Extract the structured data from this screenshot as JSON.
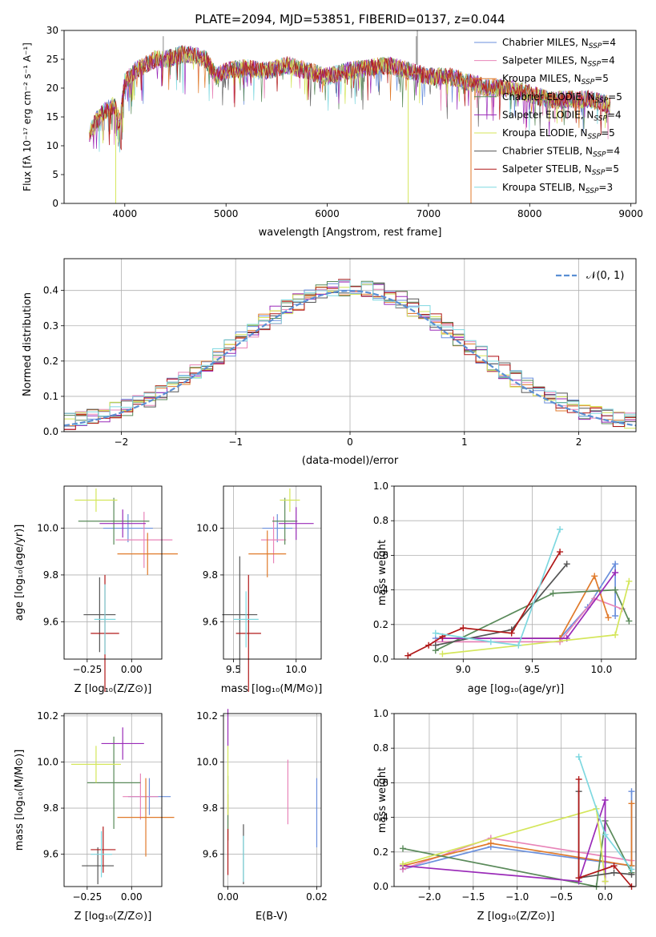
{
  "colors": [
    "#6a8fdc",
    "#e884b8",
    "#e07a2a",
    "#5a8a5a",
    "#9a2ab8",
    "#d4e65a",
    "#555555",
    "#b01818",
    "#7ed8e0"
  ],
  "spectrum_panel": {
    "title": "PLATE=2094, MJD=53851, FIBERID=0137, z=0.044",
    "xlabel": "wavelength [Angstrom, rest frame]",
    "ylabel": "Flux [fλ 10⁻¹⁷ erg cm⁻² s⁻¹ A⁻¹]",
    "x_ticks": [
      "4000",
      "5000",
      "6000",
      "7000",
      "8000",
      "9000"
    ],
    "y_ticks": [
      "0",
      "5",
      "10",
      "15",
      "20",
      "25",
      "30"
    ],
    "legend": [
      "Chabrier MILES, N_SSP=4",
      "Salpeter MILES, N_SSP=4",
      "Kroupa MILES, N_SSP=5",
      "Chabrier ELODIE, N_SSP=5",
      "Salpeter ELODIE, N_SSP=4",
      "Kroupa ELODIE, N_SSP=5",
      "Chabrier STELIB, N_SSP=4",
      "Salpeter STELIB, N_SSP=5",
      "Kroupa STELIB, N_SSP=3"
    ]
  },
  "residual_panel": {
    "xlabel": "(data-model)/error",
    "ylabel": "Normed distribution",
    "legend": "𝒩(0, 1)",
    "x_ticks": [
      "−2",
      "−1",
      "0",
      "1",
      "2"
    ],
    "y_ticks": [
      "0.0",
      "0.1",
      "0.2",
      "0.3",
      "0.4"
    ]
  },
  "z_age_panel": {
    "xlabel": "Z [log₁₀(Z/Z⊙)]",
    "ylabel": "age [log₁₀(age/yr)]",
    "x_ticks": [
      "−0.25",
      "0.00"
    ],
    "y_ticks": [
      "9.6",
      "9.8",
      "10.0"
    ]
  },
  "mass_age_panel": {
    "xlabel": "mass [log₁₀(M/M⊙)]",
    "x_ticks": [
      "9.5",
      "10.0"
    ],
    "y_ticks": [
      "9.6",
      "9.8",
      "10.0"
    ]
  },
  "age_weight_panel": {
    "xlabel": "age [log₁₀(age/yr)]",
    "ylabel": "mass weight",
    "x_ticks": [
      "9.0",
      "9.5",
      "10.0"
    ],
    "y_ticks": [
      "0.0",
      "0.2",
      "0.4",
      "0.6",
      "0.8",
      "1.0"
    ]
  },
  "z_mass_panel": {
    "xlabel": "Z [log₁₀(Z/Z⊙)]",
    "ylabel": "mass [log₁₀(M/M⊙)]",
    "x_ticks": [
      "−0.25",
      "0.00"
    ],
    "y_ticks": [
      "9.6",
      "9.8",
      "10.0",
      "10.2"
    ]
  },
  "ebv_mass_panel": {
    "xlabel": "E(B-V)",
    "x_ticks": [
      "0.00",
      "0.02"
    ],
    "y_ticks": [
      "9.6",
      "9.8",
      "10.0",
      "10.2"
    ]
  },
  "z_weight_panel": {
    "xlabel": "Z [log₁₀(Z/Z⊙)]",
    "ylabel": "mass weight",
    "x_ticks": [
      "−2.0",
      "−1.5",
      "−1.0",
      "−0.5",
      "0.0"
    ],
    "y_ticks": [
      "0.0",
      "0.2",
      "0.4",
      "0.6",
      "0.8",
      "1.0"
    ]
  },
  "chart_data": [
    {
      "type": "line",
      "title": "PLATE=2094, MJD=53851, FIBERID=0137, z=0.044",
      "xlabel": "wavelength [Angstrom, rest frame]",
      "xlim": [
        3400,
        9050
      ],
      "ylim": [
        0,
        30
      ],
      "series_shape": {
        "x": [
          3650,
          3700,
          3800,
          3900,
          3950,
          4000,
          4100,
          4200,
          4300,
          4400,
          4600,
          4800,
          4900,
          5000,
          5200,
          5400,
          5600,
          5800,
          6000,
          6200,
          6400,
          6600,
          6800,
          7000,
          7200,
          7400,
          7600,
          7800,
          8000,
          8200,
          8400,
          8600,
          8800
        ],
        "y": [
          12,
          14,
          16,
          17,
          14,
          21,
          23,
          24,
          25,
          25,
          26,
          25,
          22,
          23,
          23.5,
          23,
          24,
          23,
          22,
          23,
          23.5,
          24,
          23,
          22,
          22,
          21,
          20,
          20,
          19,
          18,
          18,
          18,
          17
        ]
      },
      "dropouts": [
        {
          "series": "Kroupa ELODIE",
          "x": 3910
        },
        {
          "series": "Kroupa ELODIE",
          "x": 6800
        },
        {
          "series": "Kroupa MILES",
          "x": 7420
        }
      ]
    },
    {
      "type": "line",
      "xlabel": "(data-model)/error",
      "ylabel": "Normed distribution",
      "xlim": [
        -2.5,
        2.5
      ],
      "ylim": [
        0,
        0.49
      ],
      "reference": "standard normal N(0,1)"
    },
    {
      "type": "scatter",
      "xlabel": "Z [log₁₀(Z/Z⊙)]",
      "ylabel": "age [log₁₀(age/yr)]",
      "xlim": [
        -0.38,
        0.17
      ],
      "ylim": [
        9.44,
        10.18
      ],
      "points": [
        {
          "x": -0.02,
          "y": 10.0,
          "xerr": 0.14,
          "yerr": 0.06,
          "c": 0
        },
        {
          "x": 0.07,
          "y": 9.95,
          "xerr": 0.16,
          "yerr": 0.12,
          "c": 1
        },
        {
          "x": 0.09,
          "y": 9.89,
          "xerr": 0.17,
          "yerr": 0.09,
          "c": 2
        },
        {
          "x": -0.1,
          "y": 10.03,
          "xerr": 0.2,
          "yerr": 0.1,
          "c": 3
        },
        {
          "x": -0.05,
          "y": 10.02,
          "xerr": 0.13,
          "yerr": 0.06,
          "c": 4
        },
        {
          "x": -0.2,
          "y": 10.12,
          "xerr": 0.12,
          "yerr": 0.05,
          "c": 5
        },
        {
          "x": -0.18,
          "y": 9.63,
          "xerr": 0.09,
          "yerr": 0.16,
          "c": 6
        },
        {
          "x": -0.15,
          "y": 9.55,
          "xerr": 0.08,
          "yerr": 0.25,
          "c": 7
        },
        {
          "x": -0.15,
          "y": 9.61,
          "xerr": 0.06,
          "yerr": 0.15,
          "c": 8
        }
      ]
    },
    {
      "type": "scatter",
      "xlabel": "mass [log₁₀(M/M⊙)]",
      "xlim": [
        9.42,
        10.2
      ],
      "ylim": [
        9.44,
        10.18
      ],
      "points": [
        {
          "x": 9.85,
          "y": 10.0,
          "xerr": 0.12,
          "yerr": 0.06,
          "c": 0
        },
        {
          "x": 9.82,
          "y": 9.95,
          "xerr": 0.1,
          "yerr": 0.1,
          "c": 1
        },
        {
          "x": 9.77,
          "y": 9.89,
          "xerr": 0.15,
          "yerr": 0.1,
          "c": 2
        },
        {
          "x": 9.91,
          "y": 10.03,
          "xerr": 0.1,
          "yerr": 0.1,
          "c": 3
        },
        {
          "x": 10.0,
          "y": 10.02,
          "xerr": 0.14,
          "yerr": 0.07,
          "c": 4
        },
        {
          "x": 9.95,
          "y": 10.12,
          "xerr": 0.08,
          "yerr": 0.05,
          "c": 5
        },
        {
          "x": 9.55,
          "y": 9.63,
          "xerr": 0.14,
          "yerr": 0.25,
          "c": 6
        },
        {
          "x": 9.62,
          "y": 9.55,
          "xerr": 0.1,
          "yerr": 0.25,
          "c": 7
        },
        {
          "x": 9.6,
          "y": 9.61,
          "xerr": 0.1,
          "yerr": 0.12,
          "c": 8
        }
      ]
    },
    {
      "type": "line",
      "xlabel": "age [log₁₀(age/yr)]",
      "ylabel": "mass weight",
      "xlim": [
        8.5,
        10.25
      ],
      "ylim": [
        0,
        1
      ],
      "series": [
        {
          "c": 0,
          "points": [
            [
              8.8,
              0.12
            ],
            [
              9.7,
              0.12
            ],
            [
              9.9,
              0.3
            ],
            [
              10.1,
              0.55
            ],
            [
              10.1,
              0.25
            ]
          ]
        },
        {
          "c": 1,
          "points": [
            [
              8.8,
              0.1
            ],
            [
              9.7,
              0.1
            ],
            [
              9.95,
              0.35
            ],
            [
              10.15,
              0.29
            ]
          ]
        },
        {
          "c": 2,
          "points": [
            [
              8.85,
              0.12
            ],
            [
              9.7,
              0.12
            ],
            [
              9.95,
              0.48
            ],
            [
              10.05,
              0.24
            ]
          ]
        },
        {
          "c": 3,
          "points": [
            [
              8.8,
              0.05
            ],
            [
              9.65,
              0.38
            ],
            [
              10.1,
              0.4
            ],
            [
              10.2,
              0.22
            ]
          ]
        },
        {
          "c": 4,
          "points": [
            [
              8.85,
              0.12
            ],
            [
              9.75,
              0.12
            ],
            [
              10.1,
              0.5
            ]
          ]
        },
        {
          "c": 5,
          "points": [
            [
              8.85,
              0.03
            ],
            [
              10.1,
              0.14
            ],
            [
              10.2,
              0.45
            ]
          ]
        },
        {
          "c": 6,
          "points": [
            [
              8.8,
              0.08
            ],
            [
              9.35,
              0.17
            ],
            [
              9.75,
              0.55
            ]
          ]
        },
        {
          "c": 7,
          "points": [
            [
              8.6,
              0.02
            ],
            [
              8.75,
              0.08
            ],
            [
              8.85,
              0.13
            ],
            [
              9.0,
              0.18
            ],
            [
              9.35,
              0.15
            ],
            [
              9.7,
              0.62
            ]
          ]
        },
        {
          "c": 8,
          "points": [
            [
              8.8,
              0.15
            ],
            [
              9.2,
              0.1
            ],
            [
              9.4,
              0.08
            ],
            [
              9.7,
              0.75
            ]
          ]
        }
      ]
    },
    {
      "type": "scatter",
      "xlabel": "Z [log₁₀(Z/Z⊙)]",
      "ylabel": "mass [log₁₀(M/M⊙)]",
      "xlim": [
        -0.38,
        0.17
      ],
      "ylim": [
        9.46,
        10.21
      ],
      "points": [
        {
          "x": 0.1,
          "y": 9.85,
          "xerr": 0.12,
          "yerr": 0.08,
          "c": 0
        },
        {
          "x": 0.05,
          "y": 9.85,
          "xerr": 0.1,
          "yerr": 0.1,
          "c": 1
        },
        {
          "x": 0.08,
          "y": 9.76,
          "xerr": 0.16,
          "yerr": 0.17,
          "c": 2
        },
        {
          "x": -0.1,
          "y": 9.91,
          "xerr": 0.15,
          "yerr": 0.2,
          "c": 3
        },
        {
          "x": -0.05,
          "y": 10.08,
          "xerr": 0.12,
          "yerr": 0.07,
          "c": 4
        },
        {
          "x": -0.2,
          "y": 9.99,
          "xerr": 0.14,
          "yerr": 0.08,
          "c": 5
        },
        {
          "x": -0.19,
          "y": 9.55,
          "xerr": 0.09,
          "yerr": 0.08,
          "c": 6
        },
        {
          "x": -0.16,
          "y": 9.62,
          "xerr": 0.07,
          "yerr": 0.1,
          "c": 7
        },
        {
          "x": -0.17,
          "y": 9.6,
          "xerr": 0.06,
          "yerr": 0.1,
          "c": 8
        }
      ]
    },
    {
      "type": "scatter",
      "xlabel": "E(B-V)",
      "xlim": [
        -0.001,
        0.021
      ],
      "ylim": [
        9.46,
        10.21
      ],
      "points": [
        {
          "x": 0.02,
          "y": 9.78,
          "yerr": 0.15,
          "c": 0
        },
        {
          "x": 0.0135,
          "y": 9.87,
          "yerr": 0.14,
          "c": 1
        },
        {
          "x": 0.0,
          "y": 9.76,
          "yerr": 0.1,
          "c": 2
        },
        {
          "x": 0.0,
          "y": 9.8,
          "yerr": 0.14,
          "c": 3
        },
        {
          "x": 0.0,
          "y": 10.15,
          "yerr": 0.08,
          "c": 4
        },
        {
          "x": 0.0,
          "y": 9.92,
          "yerr": 0.15,
          "c": 5
        },
        {
          "x": 0.0035,
          "y": 9.6,
          "yerr": 0.13,
          "c": 6
        },
        {
          "x": 0.0,
          "y": 9.61,
          "yerr": 0.1,
          "c": 7
        },
        {
          "x": 0.0035,
          "y": 9.58,
          "yerr": 0.1,
          "c": 8
        }
      ]
    },
    {
      "type": "line",
      "xlabel": "Z [log₁₀(Z/Z⊙)]",
      "ylabel": "mass weight",
      "xlim": [
        -2.4,
        0.35
      ],
      "ylim": [
        0,
        1
      ],
      "series": [
        {
          "c": 0,
          "points": [
            [
              -2.3,
              0.1
            ],
            [
              -1.3,
              0.23
            ],
            [
              0.3,
              0.12
            ],
            [
              0.3,
              0.55
            ]
          ]
        },
        {
          "c": 1,
          "points": [
            [
              -2.3,
              0.1
            ],
            [
              -1.3,
              0.28
            ],
            [
              0.3,
              0.15
            ]
          ]
        },
        {
          "c": 2,
          "points": [
            [
              -2.3,
              0.12
            ],
            [
              -1.3,
              0.25
            ],
            [
              0.3,
              0.12
            ],
            [
              0.3,
              0.48
            ]
          ]
        },
        {
          "c": 3,
          "points": [
            [
              -2.3,
              0.22
            ],
            [
              -0.1,
              0.0
            ],
            [
              0.0,
              0.38
            ],
            [
              0.3,
              0.08
            ]
          ]
        },
        {
          "c": 4,
          "points": [
            [
              -2.3,
              0.12
            ],
            [
              -0.3,
              0.03
            ],
            [
              0.0,
              0.5
            ],
            [
              0.0,
              0.03
            ]
          ]
        },
        {
          "c": 5,
          "points": [
            [
              -2.3,
              0.13
            ],
            [
              -0.1,
              0.45
            ],
            [
              0.0,
              0.03
            ]
          ]
        },
        {
          "c": 6,
          "points": [
            [
              -0.3,
              0.55
            ],
            [
              -0.3,
              0.05
            ],
            [
              0.1,
              0.08
            ],
            [
              0.3,
              0.07
            ]
          ]
        },
        {
          "c": 7,
          "points": [
            [
              -0.3,
              0.62
            ],
            [
              -0.3,
              0.05
            ],
            [
              0.1,
              0.12
            ],
            [
              0.3,
              0.0
            ]
          ]
        },
        {
          "c": 8,
          "points": [
            [
              -0.3,
              0.75
            ],
            [
              0.0,
              0.3
            ],
            [
              0.3,
              0.1
            ]
          ]
        }
      ]
    }
  ]
}
